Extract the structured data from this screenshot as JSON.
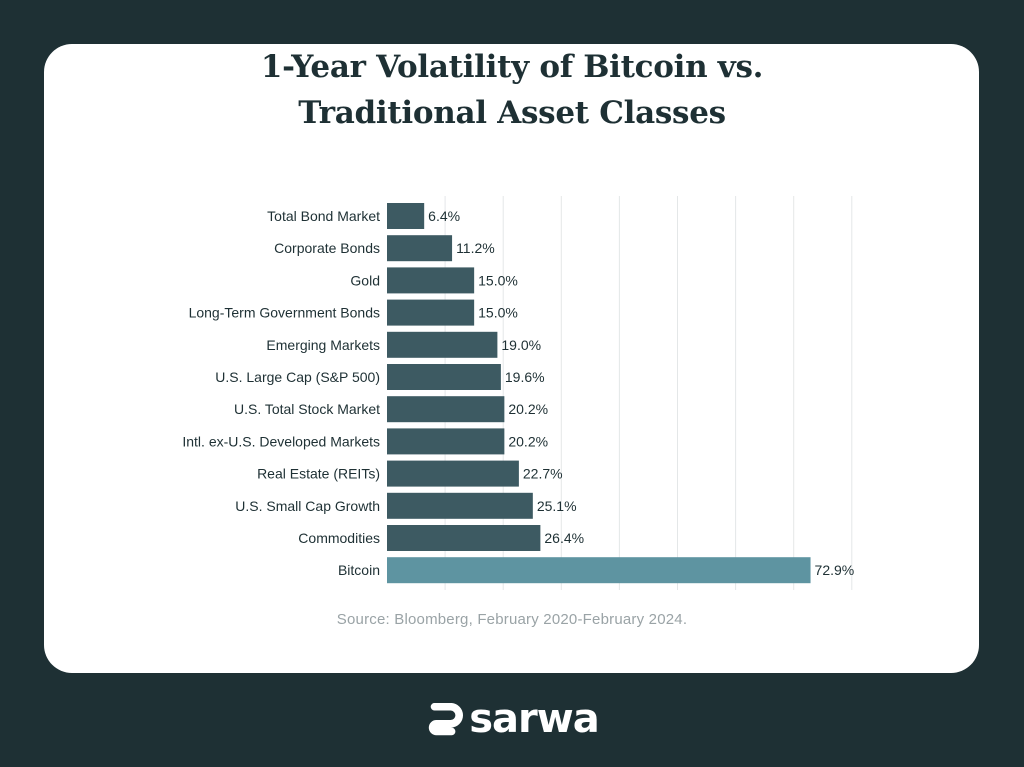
{
  "chart_data": {
    "type": "bar",
    "orientation": "horizontal",
    "title": "1-Year Volatility of Bitcoin vs. Traditional Asset Classes",
    "title_lines": [
      "1-Year Volatility of Bitcoin vs.",
      "Traditional Asset Classes"
    ],
    "categories": [
      "Total Bond Market",
      "Corporate Bonds",
      "Gold",
      "Long-Term Government Bonds",
      "Emerging Markets",
      "U.S. Large Cap (S&P 500)",
      "U.S. Total Stock Market",
      "Intl. ex-U.S. Developed Markets",
      "Real Estate (REITs)",
      "U.S. Small Cap Growth",
      "Commodities",
      "Bitcoin"
    ],
    "values": [
      6.4,
      11.2,
      15.0,
      15.0,
      19.0,
      19.6,
      20.2,
      20.2,
      22.7,
      25.1,
      26.4,
      72.9
    ],
    "value_labels": [
      "6.4%",
      "11.2%",
      "15.0%",
      "15.0%",
      "19.0%",
      "19.6%",
      "20.2%",
      "20.2%",
      "22.7%",
      "25.1%",
      "26.4%",
      "72.9%"
    ],
    "xlim": [
      0,
      80
    ],
    "grid": true,
    "grid_step": 10,
    "bar_color": "#3d5a62",
    "highlight_color": "#5e94a1",
    "highlight_index": 11
  },
  "source": "Source: Bloomberg, February 2020-February 2024.",
  "brand": {
    "name": "sarwa",
    "icon": "sarwa-logo-icon"
  },
  "colors": {
    "background": "#1e3034",
    "card": "#ffffff",
    "text": "#1e3034",
    "muted": "#9aa3a6",
    "grid": "#e4e7e8"
  }
}
